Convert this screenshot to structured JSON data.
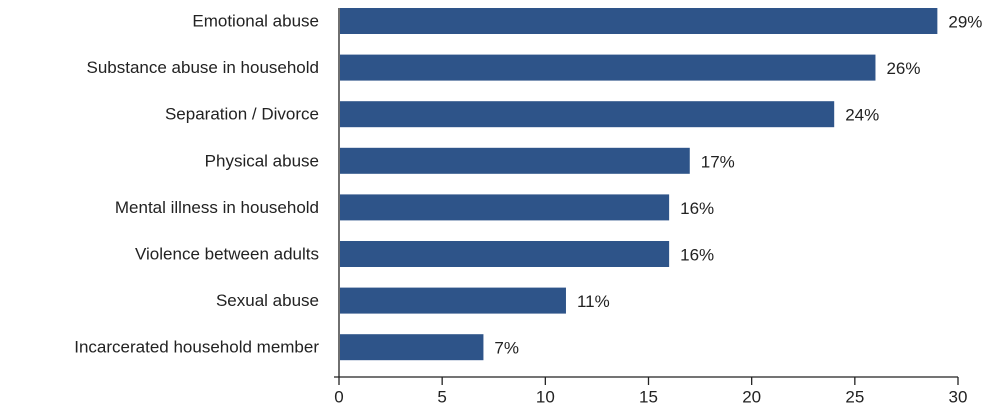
{
  "chart_data": {
    "type": "bar",
    "orientation": "horizontal",
    "categories": [
      "Emotional abuse",
      "Substance abuse in household",
      "Separation / Divorce",
      "Physical abuse",
      "Mental illness in household",
      "Violence between adults",
      "Sexual abuse",
      "Incarcerated household member"
    ],
    "values": [
      29,
      26,
      24,
      17,
      16,
      16,
      11,
      7
    ],
    "value_labels": [
      "29%",
      "26%",
      "24%",
      "17%",
      "16%",
      "16%",
      "11%",
      "7%"
    ],
    "x_ticks": [
      0,
      5,
      10,
      15,
      20,
      25,
      30
    ],
    "x_tick_labels": [
      "0",
      "5",
      "10",
      "15",
      "20",
      "25",
      "30"
    ],
    "xlim": [
      0,
      30
    ],
    "title": "",
    "xlabel": "",
    "ylabel": "",
    "grid": false,
    "colors": {
      "bar": "#2e5489",
      "axis": "#222222",
      "text": "#222222"
    }
  }
}
